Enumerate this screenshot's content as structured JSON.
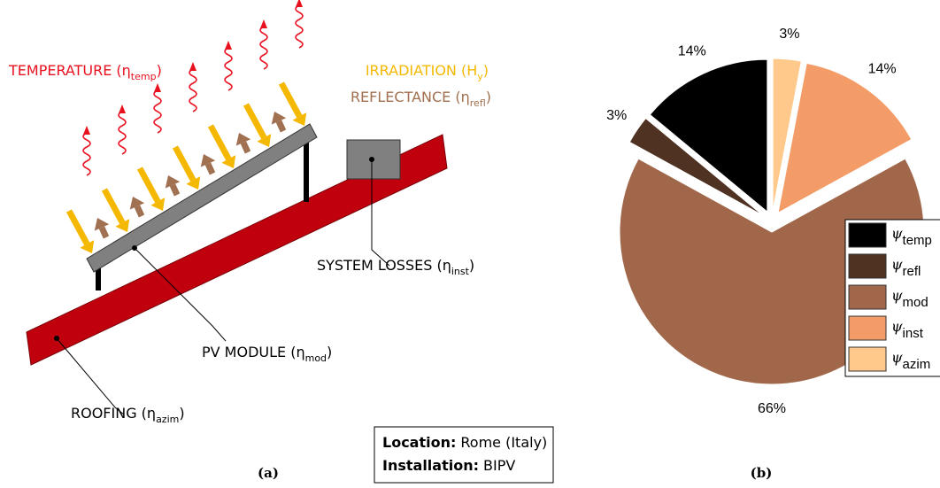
{
  "diagram": {
    "labels": [
      {
        "text": "TEMPERATURE (η",
        "sub": "temp",
        "end": ")"
      },
      {
        "text": "IRRADIATION (H",
        "sub": "y",
        "end": ")"
      },
      {
        "text": "REFLECTANCE (η",
        "sub": "refl",
        "end": ")"
      },
      {
        "text": "SYSTEM LOSSES (η",
        "sub": "inst",
        "end": ")"
      },
      {
        "text": "PV MODULE (η",
        "sub": "mod",
        "end": ")"
      },
      {
        "text": "ROOFING (η",
        "sub": "azim",
        "end": ")"
      }
    ],
    "info": [
      {
        "key": "Location:",
        "value": "Rome (Italy)"
      },
      {
        "key": "Installation:",
        "value": "BIPV"
      }
    ],
    "caption": "(a)"
  },
  "chart_data": {
    "type": "pie",
    "caption": "(b)",
    "symbol": "ψ",
    "categories": [
      "temp",
      "refl",
      "mod",
      "inst",
      "azim"
    ],
    "values": [
      14,
      3,
      66,
      14,
      3
    ],
    "value_labels": [
      "14%",
      "3%",
      "66%",
      "14%",
      "3%"
    ],
    "colors": [
      "#000000",
      "#4f3222",
      "#a0674a",
      "#f39c67",
      "#fec98a"
    ],
    "start_angle": 90,
    "direction": "counterclockwise",
    "explode": true
  }
}
